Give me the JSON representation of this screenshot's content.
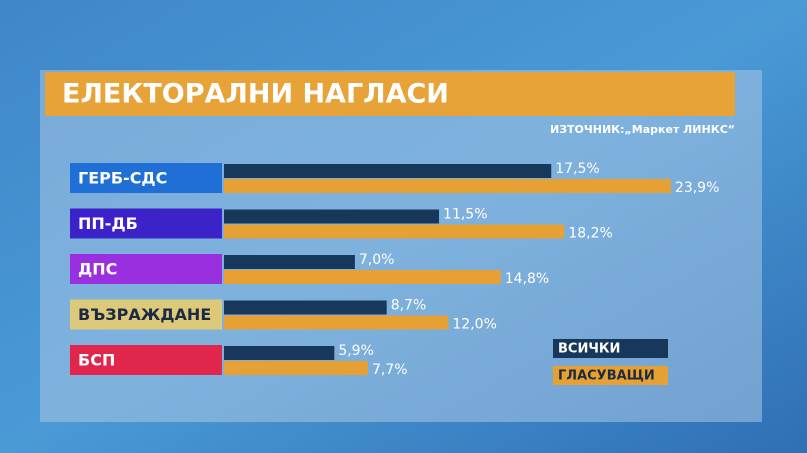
{
  "chart_data": {
    "type": "bar",
    "orientation": "horizontal",
    "title": "ЕЛЕКТОРАЛНИ НАГЛАСИ",
    "source": "ИЗТОЧНИК:„Маркет ЛИНКС“",
    "categories": [
      "ГЕРБ-СДС",
      "ПП-ДБ",
      "ДПС",
      "ВЪЗРАЖДАНЕ",
      "БСП"
    ],
    "category_colors": [
      "#1f6fd6",
      "#3b22c9",
      "#9a2fe0",
      "#dcc97a",
      "#e0264b"
    ],
    "series": [
      {
        "name": "ВСИЧКИ",
        "color": "#17385a",
        "values": [
          17.5,
          11.5,
          7.0,
          8.7,
          5.9
        ],
        "value_labels": [
          "17,5%",
          "11,5%",
          "7,0%",
          "8,7%",
          "5,9%"
        ]
      },
      {
        "name": "ГЛАСУВАЩИ",
        "color": "#e6a033",
        "values": [
          23.9,
          18.2,
          14.8,
          12.0,
          7.7
        ],
        "value_labels": [
          "23,9%",
          "18,2%",
          "14,8%",
          "12,0%",
          "7,7%"
        ]
      }
    ]
  }
}
